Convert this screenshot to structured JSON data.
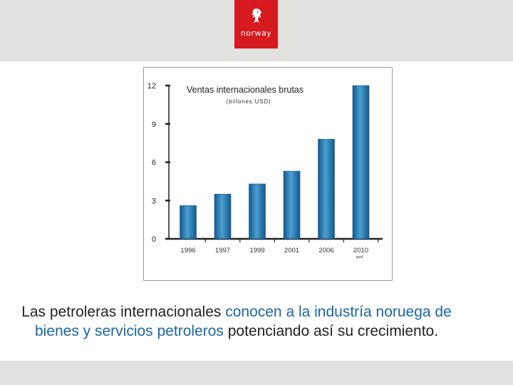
{
  "brand": {
    "logo_text": "norway"
  },
  "chart_data": {
    "type": "bar",
    "title": "Ventas internacionales brutas",
    "subtitle": "(billones USD)",
    "categories": [
      "1996",
      "1997",
      "1999",
      "2001",
      "2006",
      "2010"
    ],
    "category_notes": [
      "",
      "",
      "",
      "",
      "",
      "goal"
    ],
    "values": [
      2.6,
      3.5,
      4.3,
      5.3,
      7.8,
      12.0
    ],
    "yticks": [
      0,
      3,
      6,
      9,
      12
    ],
    "ylim": [
      0,
      12
    ],
    "xlabel": "",
    "ylabel": "",
    "legend": "none",
    "grid": false,
    "colors": {
      "bar": "#1f77b4",
      "bar_light": "#4a9fd2",
      "bar_dark": "#15588c"
    }
  },
  "caption": {
    "part1": "Las petroleras internacionales ",
    "part2": "conocen a la industría noruega de bienes y servicios petroleros",
    "part3": " potenciando así su crecimiento."
  }
}
